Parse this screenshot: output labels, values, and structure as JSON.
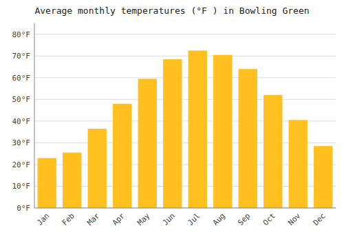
{
  "chart_data": {
    "type": "bar",
    "title": "Average monthly temperatures (°F ) in Bowling Green",
    "categories": [
      "Jan",
      "Feb",
      "Mar",
      "Apr",
      "May",
      "Jun",
      "Jul",
      "Aug",
      "Sep",
      "Oct",
      "Nov",
      "Dec"
    ],
    "values": [
      23,
      25.5,
      36.5,
      48,
      59.5,
      68.5,
      72.5,
      70.5,
      64,
      52,
      40.5,
      28.5
    ],
    "color": "#FFC020",
    "ylim": [
      0,
      85
    ],
    "yticks": [
      {
        "value": 0,
        "label": "0°F"
      },
      {
        "value": 10,
        "label": "10°F"
      },
      {
        "value": 20,
        "label": "20°F"
      },
      {
        "value": 30,
        "label": "30°F"
      },
      {
        "value": 40,
        "label": "40°F"
      },
      {
        "value": 50,
        "label": "50°F"
      },
      {
        "value": 60,
        "label": "60°F"
      },
      {
        "value": 70,
        "label": "70°F"
      },
      {
        "value": 80,
        "label": "80°F"
      }
    ],
    "grid": true
  }
}
